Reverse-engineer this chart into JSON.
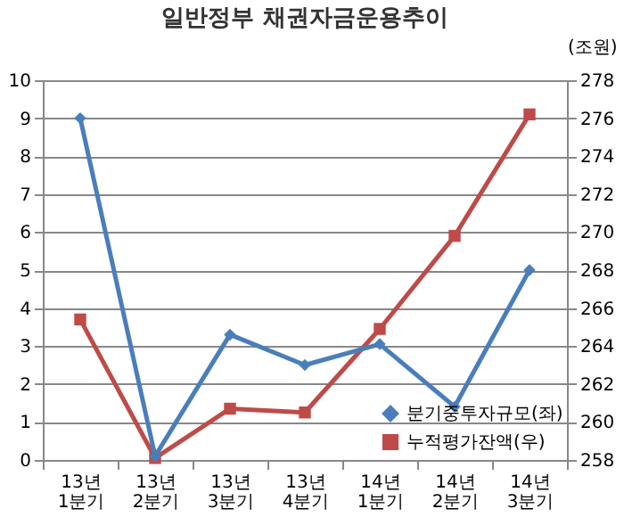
{
  "chart_data": {
    "type": "line",
    "title": "일반정부 채권자금운용추이",
    "y2label": "(조원)",
    "categories": [
      "13년1분기",
      "13년2분기",
      "13년3분기",
      "13년4분기",
      "14년1분기",
      "14년2분기",
      "14년3분기"
    ],
    "series": [
      {
        "name": "분기중투자규모(좌)",
        "color": "#4a7ebb",
        "marker": "diamond",
        "values": [
          9,
          0.1,
          3.3,
          2.5,
          3.05,
          1.4,
          5
        ]
      },
      {
        "name": "누적평가잔액(우)",
        "color": "#be4b48",
        "marker": "square",
        "axis": "y2",
        "values": [
          265.4,
          258.1,
          260.7,
          260.5,
          264.9,
          269.8,
          276.2
        ]
      }
    ],
    "ylim": [
      0,
      10
    ],
    "yticks": [
      0,
      1,
      2,
      3,
      4,
      5,
      6,
      7,
      8,
      9,
      10
    ],
    "y2lim": [
      258,
      278
    ],
    "y2ticks": [
      258,
      260,
      262,
      264,
      266,
      268,
      270,
      272,
      274,
      276,
      278
    ],
    "grid": "y",
    "legend": "bottom right",
    "line_style": "solid"
  }
}
